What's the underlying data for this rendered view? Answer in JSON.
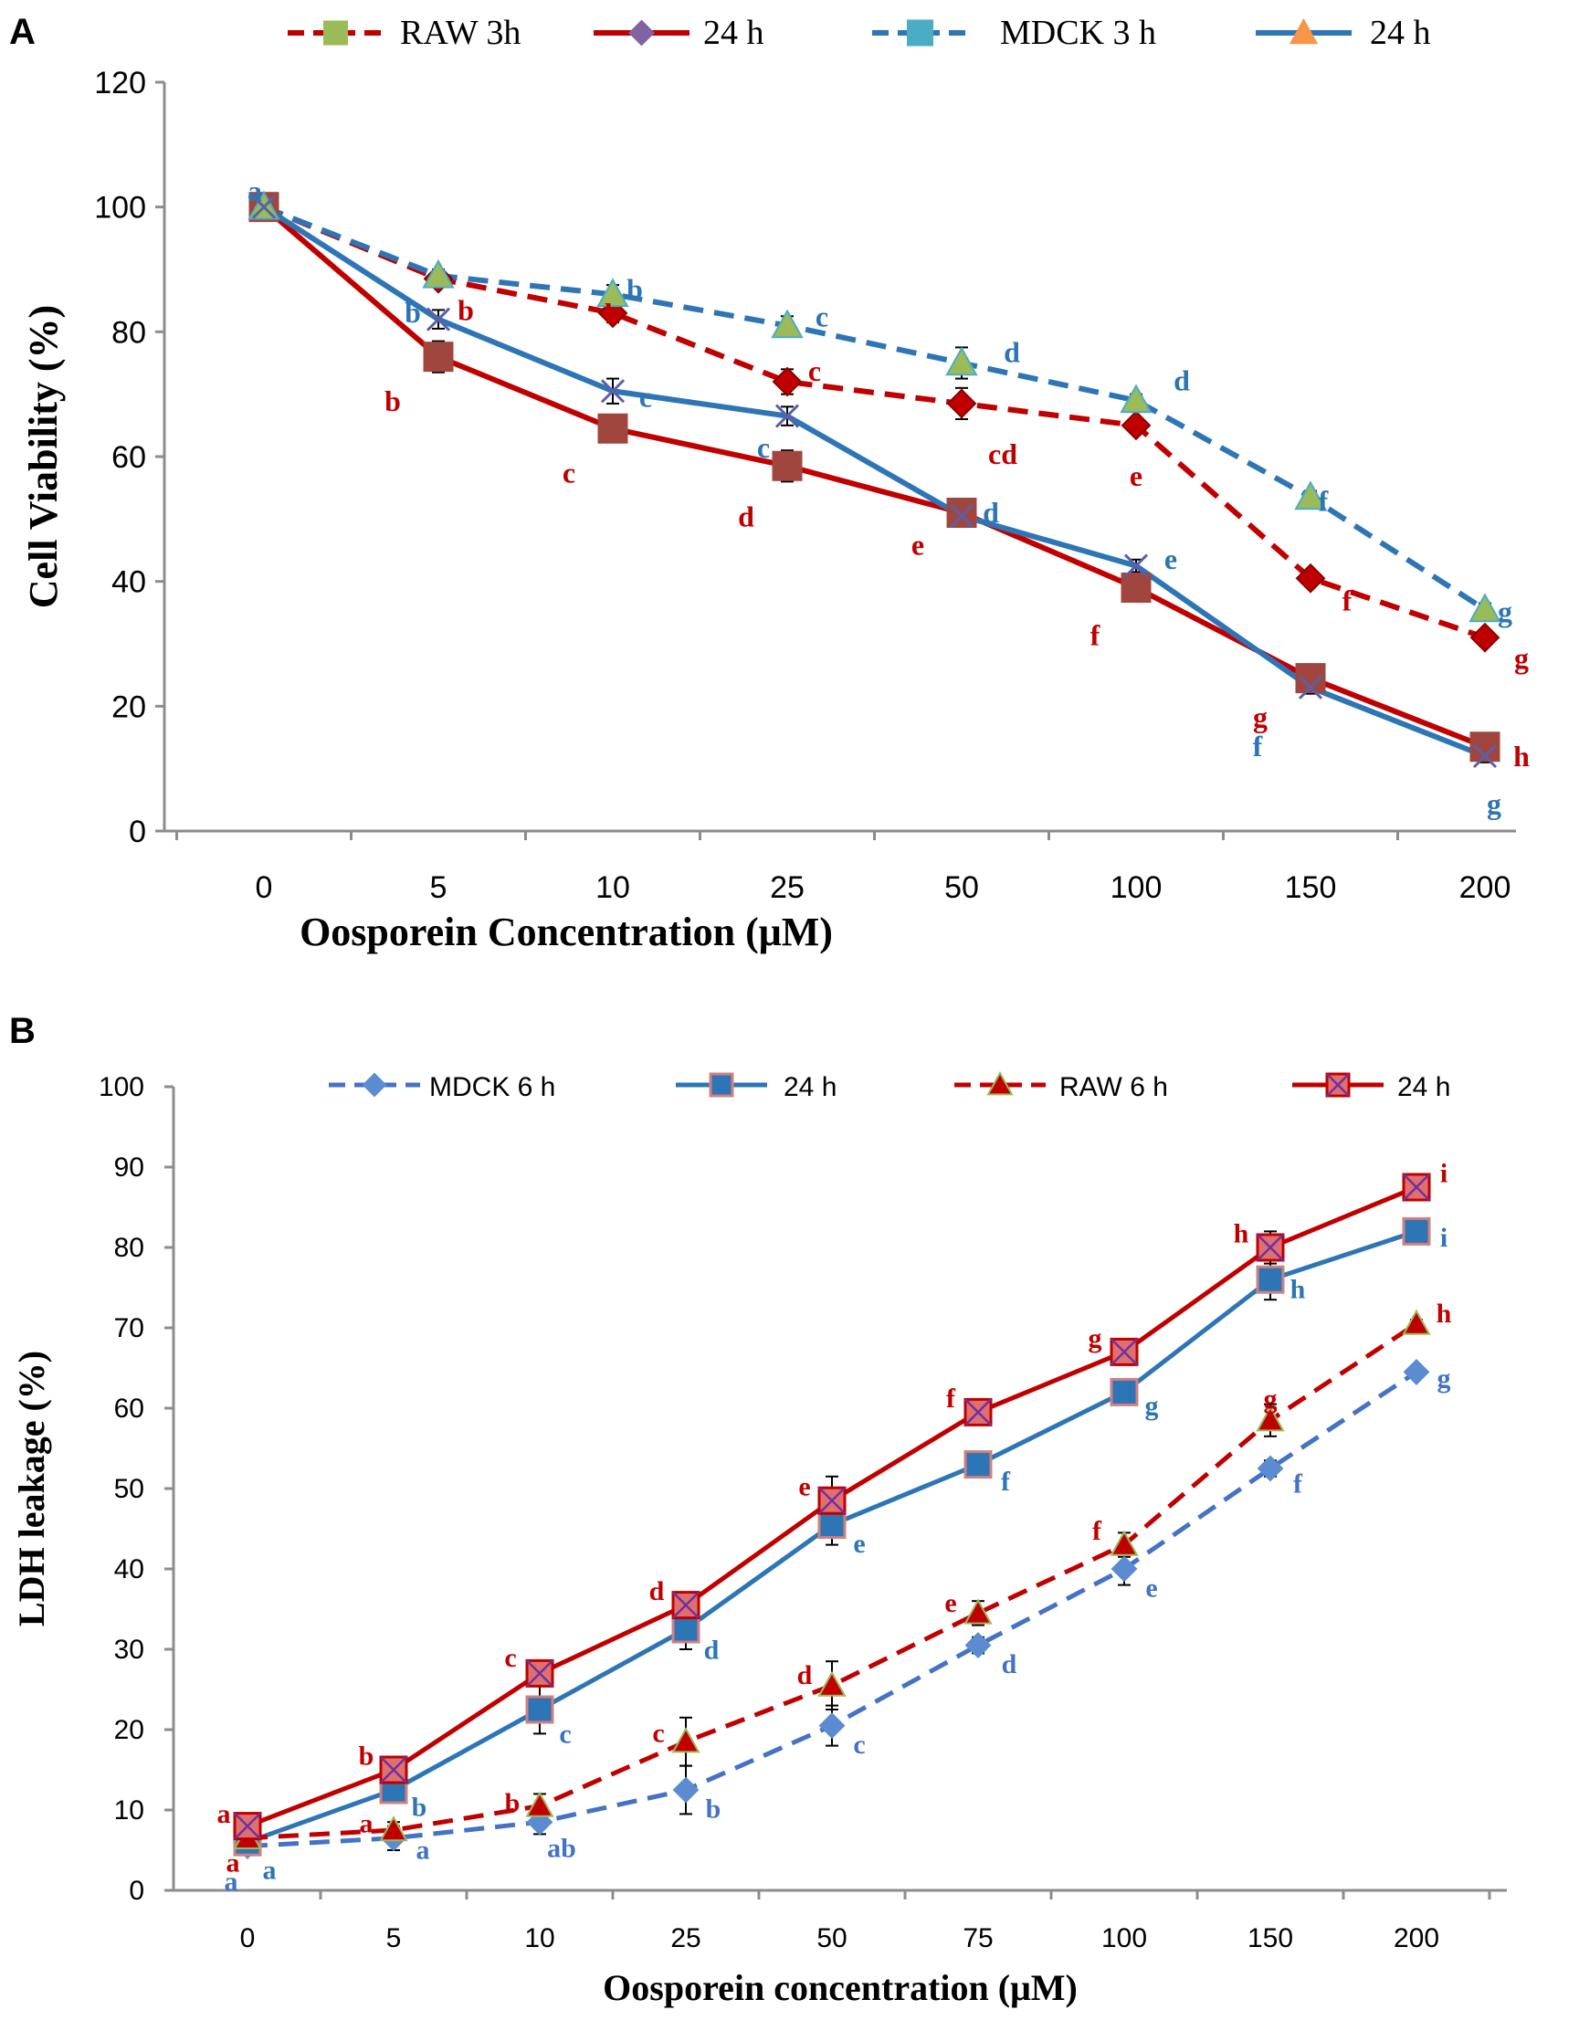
{
  "colors": {
    "red": "#C00000",
    "blue": "#2E75B6",
    "lightblue": "#4472C4",
    "axis": "#8C8C8C",
    "marker_brown": "#A0463E",
    "marker_teal": "#4BACC6",
    "marker_olive": "#9BBB59",
    "marker_orange": "#F79646",
    "marker_purple": "#8064A2"
  },
  "chart_data": [
    {
      "panel": "A",
      "type": "line",
      "categories": [
        "0",
        "5",
        "10",
        "25",
        "50",
        "100",
        "150",
        "200"
      ],
      "xlabel": "Oosporein Concentration (μM)",
      "ylabel": "Cell Viability (%)",
      "ylim": [
        0,
        120
      ],
      "yticks": [
        0,
        20,
        40,
        60,
        80,
        100,
        120
      ],
      "grid": false,
      "legend_position": "top",
      "legend": [
        {
          "label": "RAW 3h",
          "color": "#C00000",
          "dash": true,
          "marker": "square-olive"
        },
        {
          "label": "24 h",
          "color": "#C00000",
          "dash": false,
          "marker": "diamond-purple"
        },
        {
          "label": "MDCK 3 h",
          "color": "#2E75B6",
          "dash": true,
          "marker": "square-teal"
        },
        {
          "label": "24 h",
          "color": "#2E75B6",
          "dash": false,
          "marker": "triangle-orange"
        }
      ],
      "series": [
        {
          "name": "RAW 3h",
          "color": "#C00000",
          "dash": true,
          "marker": "diamond",
          "values": [
            100,
            88.5,
            83,
            72,
            68.5,
            65,
            40.5,
            31
          ],
          "letters": [
            "",
            "b",
            "b",
            "c",
            "cd",
            "e",
            "f",
            "g"
          ],
          "errors": [
            0,
            1,
            1.5,
            2,
            2.5,
            1,
            1,
            1
          ]
        },
        {
          "name": "24 h",
          "color": "#C00000",
          "dash": false,
          "marker": "square",
          "values": [
            100,
            76,
            64.5,
            58.5,
            51,
            39,
            24.5,
            13.5
          ],
          "letters": [
            "",
            "b",
            "c",
            "d",
            "e",
            "f",
            "g",
            "h"
          ],
          "errors": [
            0,
            2.5,
            1,
            2.5,
            1.5,
            1,
            1.5,
            1
          ]
        },
        {
          "name": "MDCK 3 h",
          "color": "#2E75B6",
          "dash": true,
          "marker": "triangle",
          "values": [
            100,
            89,
            86,
            81,
            75,
            69,
            53.5,
            35.5
          ],
          "letters": [
            "a",
            "",
            "b",
            "c",
            "d",
            "d",
            "f",
            "g"
          ],
          "errors": [
            0,
            1,
            1.5,
            1.5,
            2.5,
            1,
            1,
            1
          ]
        },
        {
          "name": "24 h",
          "color": "#2E75B6",
          "dash": false,
          "marker": "x",
          "values": [
            100,
            82,
            70.5,
            66.5,
            50.5,
            42.5,
            23,
            12
          ],
          "letters": [
            "",
            "b",
            "c",
            "c",
            "d",
            "e",
            "f",
            "g"
          ],
          "errors": [
            0,
            1.5,
            2,
            1.5,
            1.5,
            1,
            1,
            1
          ]
        }
      ]
    },
    {
      "panel": "B",
      "type": "line",
      "categories": [
        "0",
        "5",
        "10",
        "25",
        "50",
        "75",
        "100",
        "150",
        "200"
      ],
      "xlabel": "Oosporein concentration (μM)",
      "ylabel": "LDH leakage (%)",
      "ylim": [
        0,
        100
      ],
      "yticks": [
        0,
        10,
        20,
        30,
        40,
        50,
        60,
        70,
        80,
        90,
        100
      ],
      "grid": false,
      "legend_position": "top",
      "legend": [
        {
          "label": "MDCK 6 h",
          "color": "#4472C4",
          "dash": true,
          "marker": "diamond"
        },
        {
          "label": "24 h",
          "color": "#2E75B6",
          "dash": false,
          "marker": "square"
        },
        {
          "label": "RAW 6 h",
          "color": "#C00000",
          "dash": true,
          "marker": "triangle"
        },
        {
          "label": "24 h",
          "color": "#C00000",
          "dash": false,
          "marker": "x-square"
        }
      ],
      "series": [
        {
          "name": "MDCK 6 h",
          "color": "#4472C4",
          "dash": true,
          "marker": "diamond",
          "values": [
            5.5,
            6.5,
            8.5,
            12.5,
            20.5,
            30.5,
            40,
            52.5,
            64.5
          ],
          "letters": [
            "a",
            "a",
            "ab",
            "b",
            "c",
            "d",
            "e",
            "f",
            "g"
          ],
          "errors": [
            0.5,
            1.5,
            1.5,
            3,
            2.5,
            1,
            2,
            1,
            0.5
          ]
        },
        {
          "name": "24 h",
          "color": "#2E75B6",
          "dash": false,
          "marker": "square",
          "values": [
            6,
            12.5,
            22.5,
            32.5,
            45.5,
            53,
            62,
            76,
            82
          ],
          "letters": [
            "a",
            "b",
            "c",
            "d",
            "e",
            "f",
            "g",
            "h",
            "i"
          ],
          "errors": [
            0.5,
            1.5,
            3,
            2.5,
            2.5,
            1,
            1.5,
            2.5,
            0.5
          ]
        },
        {
          "name": "RAW 6 h",
          "color": "#C00000",
          "dash": true,
          "marker": "triangle",
          "values": [
            6.5,
            7.5,
            10.5,
            18.5,
            25.5,
            34.5,
            43,
            58.5,
            70.5
          ],
          "letters": [
            "a",
            "a",
            "b",
            "c",
            "d",
            "e",
            "f",
            "g",
            "h"
          ],
          "errors": [
            0.5,
            1,
            1.5,
            3,
            3,
            1.5,
            1.5,
            2,
            0.5
          ]
        },
        {
          "name": "24 h",
          "color": "#C00000",
          "dash": false,
          "marker": "x-square",
          "values": [
            8,
            15,
            27,
            35.5,
            48.5,
            59.5,
            67,
            80,
            87.5
          ],
          "letters": [
            "a",
            "b",
            "c",
            "d",
            "e",
            "f",
            "g",
            "h",
            "i"
          ],
          "errors": [
            0.5,
            1,
            1.5,
            1.5,
            3,
            1.5,
            1.5,
            2,
            0.5
          ]
        }
      ]
    }
  ],
  "panel_labels": [
    "A",
    "B"
  ]
}
